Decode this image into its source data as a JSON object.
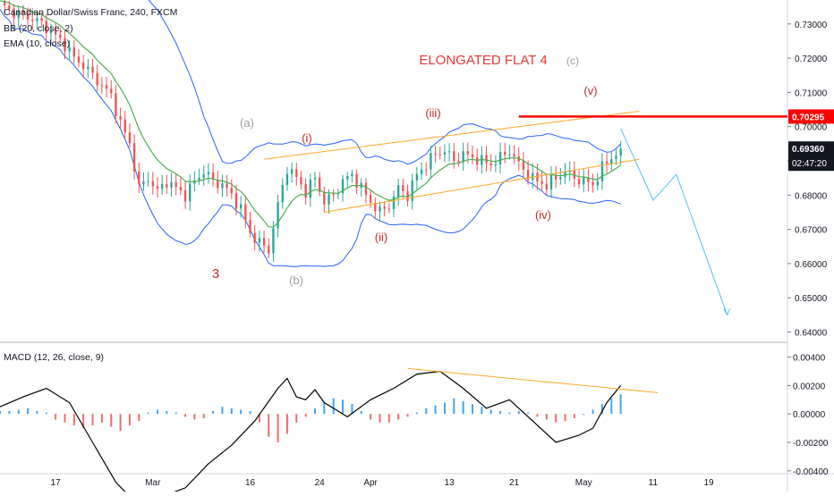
{
  "chart_data": [
    {
      "type": "candlestick",
      "title": "Canadian Dollar/Swiss Franc, 240, FXCM",
      "indicators": [
        "BB (20, close, 2)",
        "EMA (10, close)"
      ],
      "y_ticks": [
        "0.73000",
        "0.72000",
        "0.71000",
        "0.70000",
        "0.69000",
        "0.68000",
        "0.67000",
        "0.66000",
        "0.65000",
        "0.64000"
      ],
      "ylim": [
        0.637,
        0.737
      ],
      "x_ticks": [
        "17",
        "Mar",
        "16",
        "24",
        "Apr",
        "13",
        "21",
        "May",
        "11",
        "19"
      ],
      "price_labels": {
        "level": {
          "text": "0.70295",
          "value": 0.70295,
          "color": "#ff0000"
        },
        "last": {
          "text": "0.69360",
          "value": 0.6936
        },
        "countdown": {
          "text": "02:47:20"
        }
      },
      "annotations": [
        {
          "text": "ELONGATED FLAT  4",
          "color": "#e53935"
        },
        {
          "text": "(c)",
          "color": "#9e9e9e"
        },
        {
          "text": "(v)",
          "color": "#c62828"
        },
        {
          "text": "(iii)",
          "color": "#c62828"
        },
        {
          "text": "(i)",
          "color": "#c62828"
        },
        {
          "text": "(a)",
          "color": "#9e9e9e"
        },
        {
          "text": "(ii)",
          "color": "#c62828"
        },
        {
          "text": "(iv)",
          "color": "#c62828"
        },
        {
          "text": "3",
          "color": "#c62828"
        },
        {
          "text": "(b)",
          "color": "#9e9e9e"
        }
      ],
      "colors": {
        "up": "#26a69a",
        "down": "#ef5350",
        "bb": "#2962ff",
        "ema": "#4caf50",
        "trendline": "#ffa726",
        "projection": "#4fc3f7",
        "level": "#ff0000"
      },
      "series": [
        {
          "name": "close",
          "x": [
            0,
            2,
            4,
            6,
            8,
            10,
            12,
            14,
            16,
            18,
            20,
            22,
            24,
            26,
            28,
            30,
            32,
            34,
            36,
            38,
            40,
            42,
            44,
            46,
            48,
            50,
            52,
            54,
            56,
            58,
            60,
            62,
            64,
            66,
            68,
            70,
            72,
            74,
            76,
            78,
            80,
            82,
            84,
            86,
            88,
            90,
            92,
            94,
            96,
            98,
            100,
            102,
            104,
            106,
            108,
            110,
            112,
            114,
            116,
            118,
            120,
            122,
            124,
            126,
            128,
            130,
            132,
            134
          ],
          "values": [
            0.736,
            0.734,
            0.733,
            0.732,
            0.731,
            0.729,
            0.7265,
            0.724,
            0.72,
            0.718,
            0.715,
            0.712,
            0.709,
            0.701,
            0.695,
            0.682,
            0.685,
            0.681,
            0.684,
            0.682,
            0.68,
            0.684,
            0.687,
            0.684,
            0.683,
            0.68,
            0.676,
            0.669,
            0.666,
            0.664,
            0.677,
            0.688,
            0.685,
            0.681,
            0.685,
            0.678,
            0.68,
            0.684,
            0.686,
            0.682,
            0.678,
            0.675,
            0.677,
            0.682,
            0.68,
            0.686,
            0.689,
            0.692,
            0.693,
            0.69,
            0.692,
            0.691,
            0.69,
            0.689,
            0.691,
            0.693,
            0.689,
            0.686,
            0.684,
            0.683,
            0.685,
            0.687,
            0.685,
            0.684,
            0.683,
            0.688,
            0.691,
            0.6936
          ]
        }
      ],
      "projection": [
        {
          "x": 134,
          "y": 0.6995
        },
        {
          "x": 141,
          "y": 0.6785
        },
        {
          "x": 146,
          "y": 0.686
        },
        {
          "x": 157,
          "y": 0.645
        }
      ]
    },
    {
      "type": "bar",
      "title": "MACD (12, 26, close, 9)",
      "y_ticks": [
        "0.00400",
        "0.00200",
        "0.00000",
        "-0.00200",
        "-0.00400"
      ],
      "ylim": [
        -0.0042,
        0.0046
      ],
      "macd_x": [
        0,
        5,
        10,
        15,
        20,
        25,
        30,
        35,
        40,
        45,
        50,
        55,
        60,
        62,
        64,
        66,
        68,
        70,
        75,
        80,
        85,
        90,
        95,
        100,
        105,
        110,
        115,
        120,
        125,
        128,
        131,
        134
      ],
      "macd_values": [
        0.0005,
        0.0012,
        0.0018,
        0.0008,
        -0.002,
        -0.0048,
        -0.0065,
        -0.0058,
        -0.0052,
        -0.0035,
        -0.0022,
        -0.0005,
        0.0018,
        0.0025,
        0.0012,
        0.001,
        0.0017,
        0.0008,
        -0.0002,
        0.001,
        0.0018,
        0.0028,
        0.003,
        0.0018,
        0.0004,
        0.001,
        -0.0005,
        -0.002,
        -0.0015,
        -0.001,
        0.0008,
        0.002
      ],
      "histogram": [
        0.0002,
        0.0002,
        0.0003,
        0.0004,
        0.0002,
        0.0001,
        -0.0004,
        -0.0006,
        -0.0008,
        -0.001,
        -0.0008,
        -0.0006,
        -0.0009,
        -0.0012,
        -0.0008,
        -0.0005,
        0.0001,
        0.0003,
        0.0002,
        0.0001,
        -0.0002,
        -0.0004,
        -0.0003,
        0.0002,
        0.0005,
        0.0004,
        0.0003,
        0.0002,
        -0.0006,
        -0.0016,
        -0.002,
        -0.0014,
        -0.0006,
        -0.0002,
        0.0004,
        0.0008,
        0.0011,
        0.001,
        0.0007,
        0.0002,
        -0.0004,
        -0.0006,
        -0.0006,
        -0.0004,
        -0.0002,
        0.0001,
        0.0004,
        0.0006,
        0.0008,
        0.0011,
        0.0009,
        0.0007,
        0.0005,
        0.0003,
        0.0002,
        0.0001,
        0.0002,
        0.0001,
        -0.0002,
        -0.0004,
        -0.0006,
        -0.0005,
        -0.0003,
        0.0,
        0.0003,
        0.0007,
        0.0011,
        0.0014
      ]
    }
  ]
}
